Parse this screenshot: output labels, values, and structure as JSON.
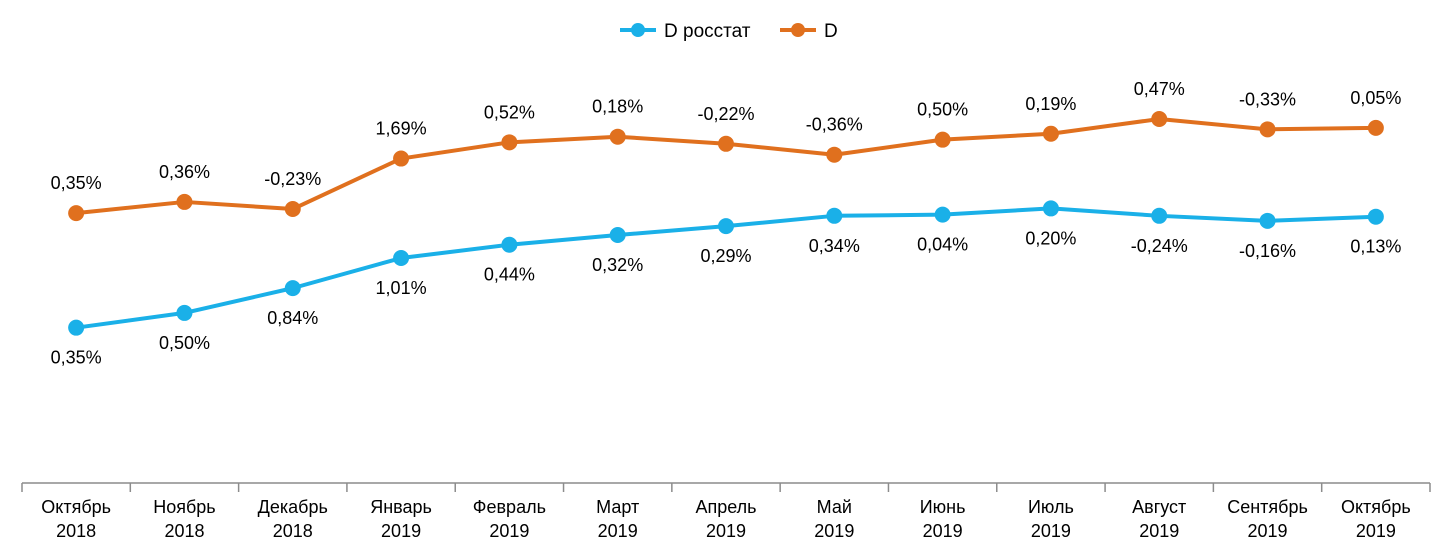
{
  "chart_data": {
    "type": "line",
    "title": "",
    "xlabel": "",
    "ylabel": "",
    "legend_position": "top-center",
    "grid": false,
    "categories": [
      [
        "Октябрь",
        "2018"
      ],
      [
        "Ноябрь",
        "2018"
      ],
      [
        "Декабрь",
        "2018"
      ],
      [
        "Январь",
        "2019"
      ],
      [
        "Февраль",
        "2019"
      ],
      [
        "Март",
        "2019"
      ],
      [
        "Апрель",
        "2019"
      ],
      [
        "Май",
        "2019"
      ],
      [
        "Июнь",
        "2019"
      ],
      [
        "Июль",
        "2019"
      ],
      [
        "Август",
        "2019"
      ],
      [
        "Сентябрь",
        "2019"
      ],
      [
        "Октябрь",
        "2019"
      ]
    ],
    "series": [
      {
        "name": "D росстат",
        "color": "#1ab0e8",
        "values": [
          0.35,
          0.85,
          1.69,
          2.71,
          3.16,
          3.49,
          3.79,
          4.14,
          4.18,
          4.39,
          4.14,
          3.97,
          4.11
        ],
        "labels": [
          "0,35%",
          "0,50%",
          "0,84%",
          "1,01%",
          "0,44%",
          "0,32%",
          "0,29%",
          "0,34%",
          "0,04%",
          "0,20%",
          "-0,24%",
          "-0,16%",
          "0,13%"
        ]
      },
      {
        "name": "D",
        "color": "#e0701e",
        "values": [
          4.23,
          4.61,
          4.37,
          6.08,
          6.63,
          6.82,
          6.58,
          6.21,
          6.72,
          6.92,
          7.42,
          7.07,
          7.12
        ],
        "labels": [
          "0,35%",
          "0,36%",
          "-0,23%",
          "1,69%",
          "0,52%",
          "0,18%",
          "-0,22%",
          "-0,36%",
          "0,50%",
          "0,19%",
          "0,47%",
          "-0,33%",
          "0,05%"
        ]
      }
    ]
  }
}
